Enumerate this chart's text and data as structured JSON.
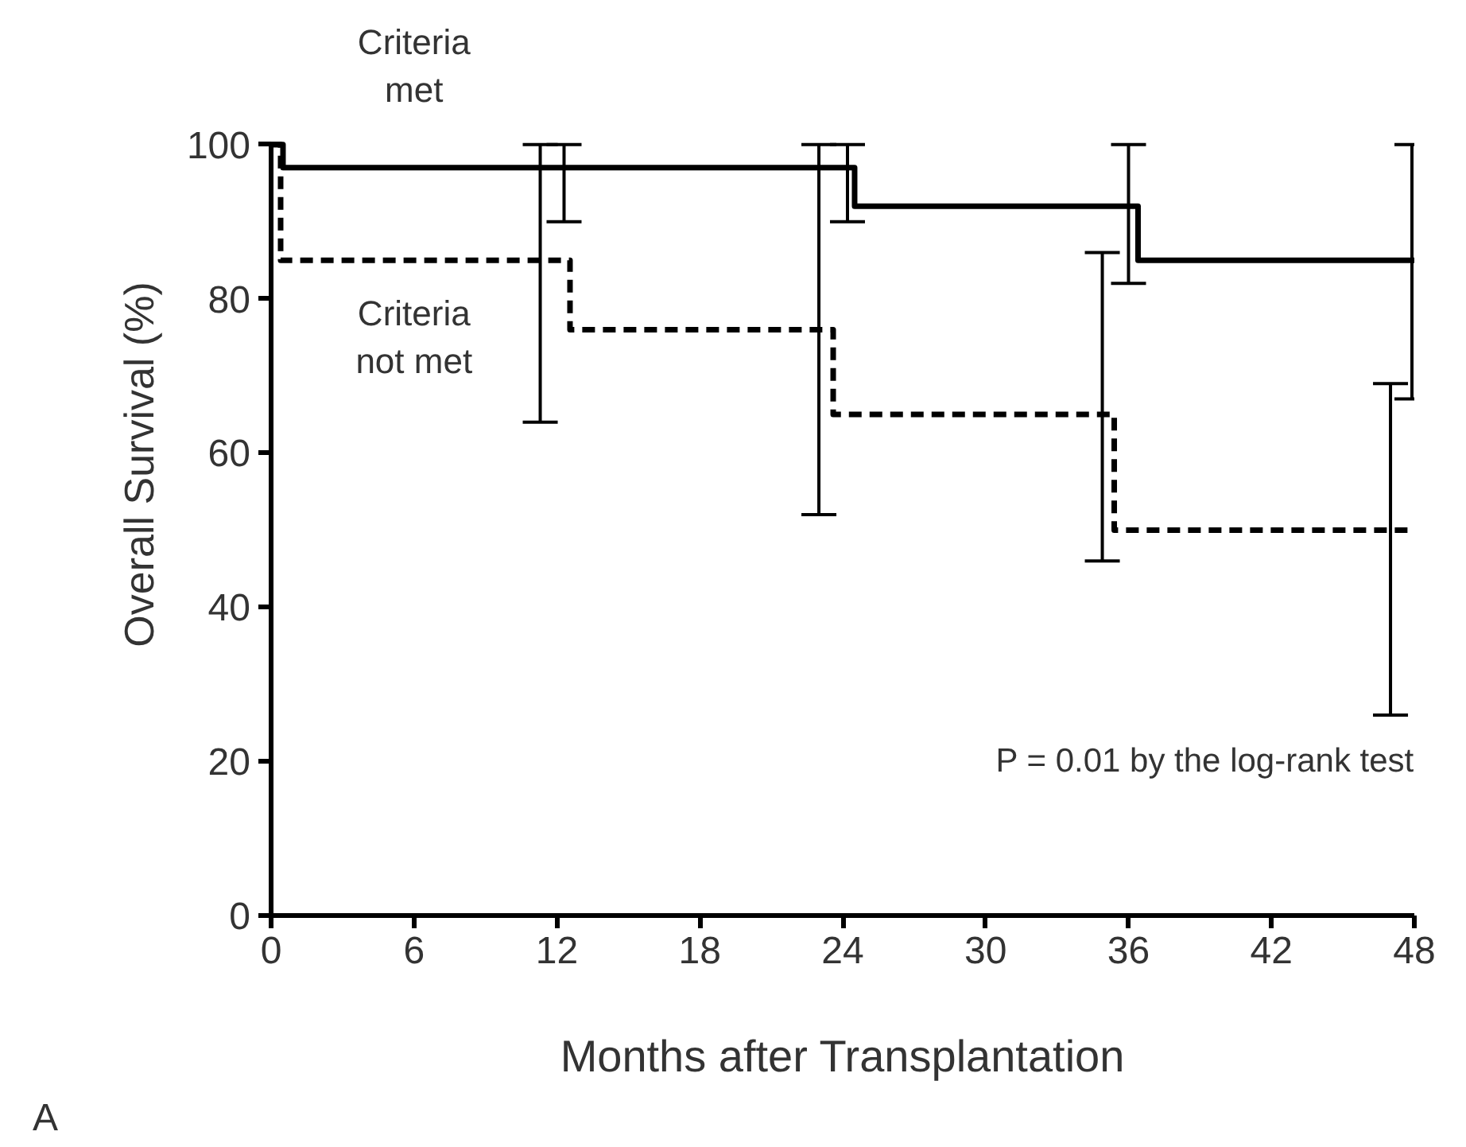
{
  "chart_data": {
    "type": "step",
    "xlabel": "Months after Transplantation",
    "ylabel": "Overall Survival (%)",
    "xlim": [
      0,
      48
    ],
    "xticks": [
      0,
      6,
      12,
      18,
      24,
      30,
      36,
      42,
      48
    ],
    "ylim": [
      0,
      100
    ],
    "yticks": [
      0,
      20,
      40,
      60,
      80,
      100
    ],
    "annotations": [
      "P = 0.01 by the log-rank test",
      "A"
    ],
    "series": [
      {
        "name": "Criteria met",
        "color": "#000000",
        "line_style": "solid",
        "x": [
          0,
          0.5,
          12.3,
          24.2,
          24.5,
          36.0,
          36.4,
          47.9,
          48
        ],
        "values": [
          100,
          97,
          97,
          97,
          92,
          92,
          85,
          85,
          85
        ],
        "errors": [
          null,
          null,
          [
            90,
            100
          ],
          [
            90,
            100
          ],
          null,
          [
            82,
            100
          ],
          null,
          [
            67,
            100
          ],
          null
        ]
      },
      {
        "name": "Criteria not met",
        "color": "#000000",
        "line_style": "dashed",
        "x": [
          0,
          0.4,
          11.3,
          12.55,
          23.0,
          23.6,
          34.9,
          35.4,
          47.0,
          48
        ],
        "values": [
          100,
          85,
          85,
          76,
          76,
          65,
          65,
          50,
          50,
          50
        ],
        "errors": [
          null,
          null,
          [
            64,
            100
          ],
          null,
          [
            52,
            100
          ],
          null,
          [
            46,
            86
          ],
          null,
          [
            26,
            69
          ],
          null
        ]
      }
    ]
  }
}
